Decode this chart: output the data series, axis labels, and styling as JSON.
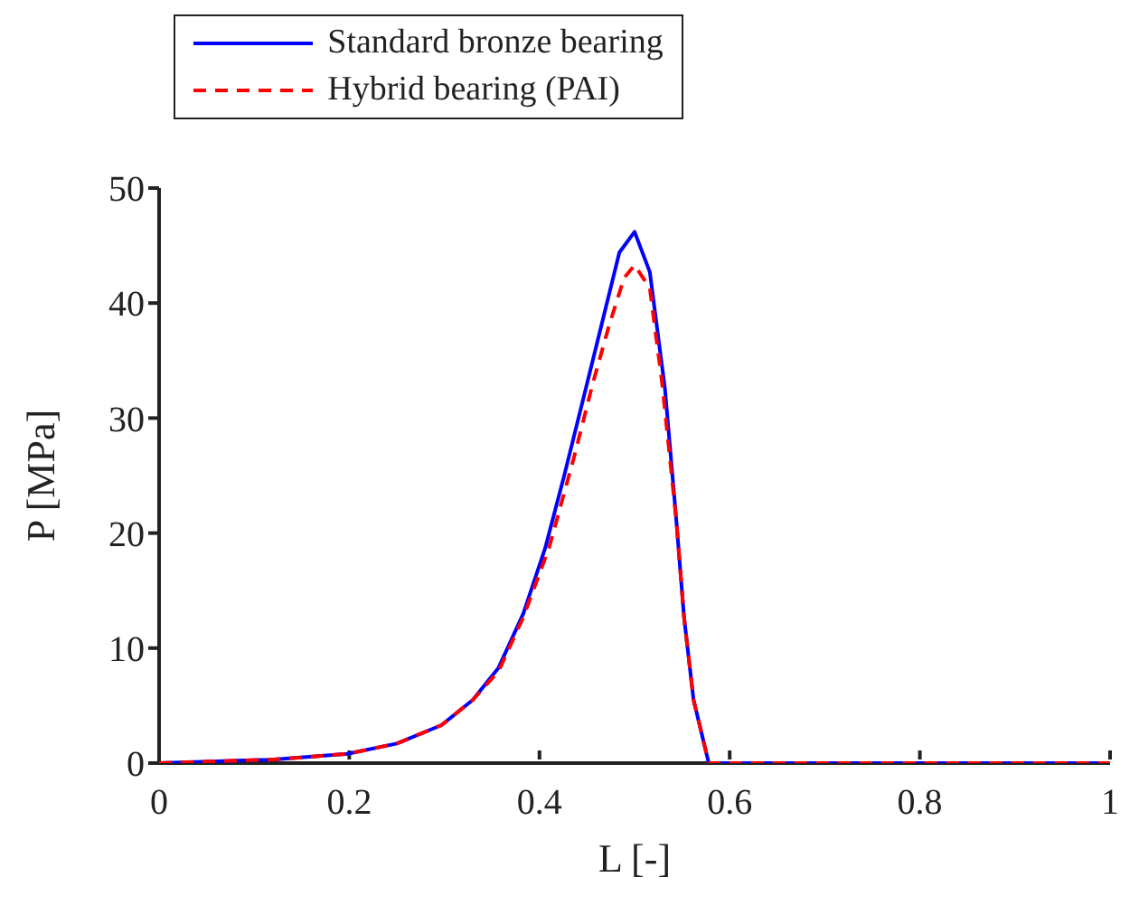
{
  "chart_data": {
    "type": "line",
    "xlabel": "L  [-]",
    "ylabel": "P [MPa]",
    "xlim": [
      0,
      1
    ],
    "xticks": [
      0,
      0.2,
      0.4,
      0.6,
      0.8,
      1
    ],
    "ylim": [
      0,
      50
    ],
    "yticks": [
      0,
      10,
      20,
      30,
      40,
      50
    ],
    "grid": false,
    "legend": "top",
    "marker": "none",
    "series": [
      {
        "name": "Standard bronze bearing",
        "color": "#0000ff",
        "line_style": "solid",
        "x": [
          0,
          0.118,
          0.198,
          0.25,
          0.297,
          0.33,
          0.357,
          0.383,
          0.406,
          0.426,
          0.45,
          0.47,
          0.484,
          0.5,
          0.516,
          0.532,
          0.544,
          0.552,
          0.562,
          0.578,
          0.6,
          0.8,
          1
        ],
        "values": [
          0,
          0.3,
          0.8,
          1.7,
          3.3,
          5.5,
          8.3,
          13,
          18.7,
          25,
          33,
          39.7,
          44.4,
          46.2,
          42.7,
          32.5,
          21,
          12.7,
          5.5,
          0,
          0,
          0,
          0
        ]
      },
      {
        "name": "Hybrid bearing (PAI)",
        "color": "#ff0000",
        "line_style": "dashed",
        "x": [
          0,
          0.118,
          0.198,
          0.25,
          0.297,
          0.33,
          0.357,
          0.383,
          0.41,
          0.436,
          0.456,
          0.473,
          0.489,
          0.5,
          0.516,
          0.529,
          0.544,
          0.552,
          0.562,
          0.578,
          0.6,
          0.8,
          1
        ],
        "values": [
          0,
          0.3,
          0.8,
          1.7,
          3.3,
          5.5,
          8,
          12.7,
          18.7,
          26.5,
          33,
          38,
          42.2,
          43.3,
          41.3,
          33,
          21,
          12.7,
          5.5,
          0,
          0,
          0,
          0
        ]
      }
    ]
  }
}
